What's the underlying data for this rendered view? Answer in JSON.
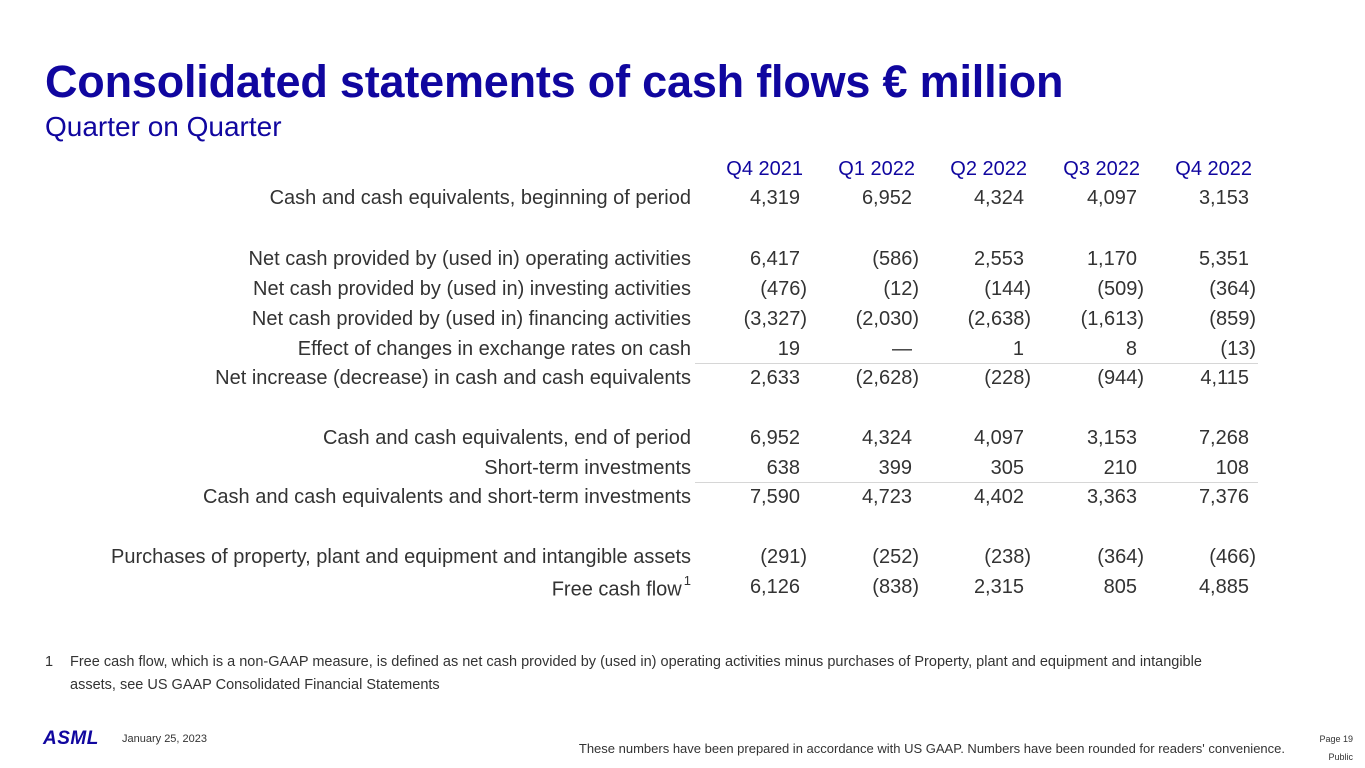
{
  "title": "Consolidated statements of cash flows € million",
  "subtitle": "Quarter on Quarter",
  "columns": [
    "Q4 2021",
    "Q1 2022",
    "Q2 2022",
    "Q3 2022",
    "Q4 2022"
  ],
  "rows": [
    {
      "label": "Cash and cash equivalents, beginning of period",
      "values": [
        "4,319",
        "6,952",
        "4,324",
        "4,097",
        "3,153"
      ]
    },
    {
      "label": "Net cash provided by (used in) operating activities",
      "values": [
        "6,417",
        "(586)",
        "2,553",
        "1,170",
        "5,351"
      ]
    },
    {
      "label": "Net cash provided by (used in) investing activities",
      "values": [
        "(476)",
        "(12)",
        "(144)",
        "(509)",
        "(364)"
      ]
    },
    {
      "label": "Net cash provided by (used in) financing activities",
      "values": [
        "(3,327)",
        "(2,030)",
        "(2,638)",
        "(1,613)",
        "(859)"
      ]
    },
    {
      "label": "Effect of changes in exchange rates on cash",
      "values": [
        "19",
        "—",
        "1",
        "8",
        "(13)"
      ]
    },
    {
      "label": "Net increase (decrease) in cash and cash equivalents",
      "values": [
        "2,633",
        "(2,628)",
        "(228)",
        "(944)",
        "4,115"
      ]
    },
    {
      "label": "Cash and cash equivalents, end of period",
      "values": [
        "6,952",
        "4,324",
        "4,097",
        "3,153",
        "7,268"
      ]
    },
    {
      "label": "Short-term investments",
      "values": [
        "638",
        "399",
        "305",
        "210",
        "108"
      ]
    },
    {
      "label": "Cash and cash equivalents and short-term investments",
      "values": [
        "7,590",
        "4,723",
        "4,402",
        "3,363",
        "7,376"
      ]
    },
    {
      "label": "Purchases of property, plant and equipment and intangible assets",
      "values": [
        "(291)",
        "(252)",
        "(238)",
        "(364)",
        "(466)"
      ]
    },
    {
      "label": "Free cash flow",
      "footnote_ref": "1",
      "values": [
        "6,126",
        "(838)",
        "2,315",
        "805",
        "4,885"
      ]
    }
  ],
  "footnote": {
    "number": "1",
    "text": "Free cash flow, which is a non-GAAP measure, is defined as net cash provided by (used in) operating activities minus purchases of Property, plant and equipment and intangible assets, see US GAAP Consolidated Financial Statements"
  },
  "footer": {
    "logo": "ASML",
    "date": "January 25, 2023",
    "disclaimer": "These numbers have been prepared in accordance with US GAAP.  Numbers have been rounded for readers' convenience.",
    "page": "Page 19",
    "classification": "Public"
  },
  "colors": {
    "brand_blue": "#10069f",
    "text": "#333333",
    "rule": "#d6d6d6"
  }
}
